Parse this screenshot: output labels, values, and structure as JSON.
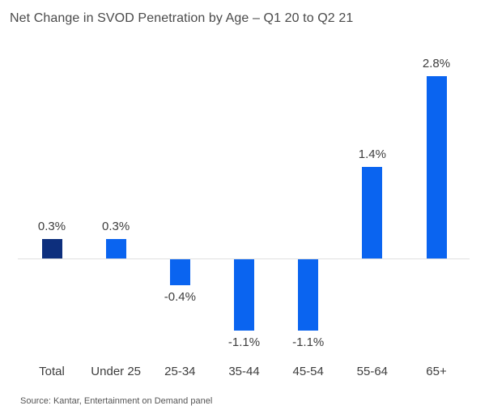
{
  "title": "Net Change in SVOD Penetration by Age – Q1 20 to Q2 21",
  "source": "Source: Kantar, Entertainment on Demand panel",
  "colors": {
    "highlight_bar": "#0d2f7d",
    "default_bar": "#0a64f0",
    "axis_line": "#e0e0e0",
    "title_text": "#4a4a4a",
    "label_text": "#3d3d3d",
    "source_text": "#555555",
    "background": "#ffffff"
  },
  "chart_data": {
    "type": "bar",
    "title": "Net Change in SVOD Penetration by Age – Q1 20 to Q2 21",
    "categories": [
      "Total",
      "Under 25",
      "25-34",
      "35-44",
      "45-54",
      "55-64",
      "65+"
    ],
    "values": [
      0.3,
      0.3,
      -0.4,
      -1.1,
      -1.1,
      1.4,
      2.8
    ],
    "value_labels": [
      "0.3%",
      "0.3%",
      "-0.4%",
      "-1.1%",
      "-1.1%",
      "1.4%",
      "2.8%"
    ],
    "bar_colors": [
      "#0d2f7d",
      "#0a64f0",
      "#0a64f0",
      "#0a64f0",
      "#0a64f0",
      "#0a64f0",
      "#0a64f0"
    ],
    "xlabel": "",
    "ylabel": "",
    "ylim": [
      -1.5,
      3.0
    ],
    "baseline": 0,
    "grid": false,
    "legend": false,
    "data_labels": true,
    "source_note": "Source: Kantar, Entertainment on Demand panel"
  }
}
